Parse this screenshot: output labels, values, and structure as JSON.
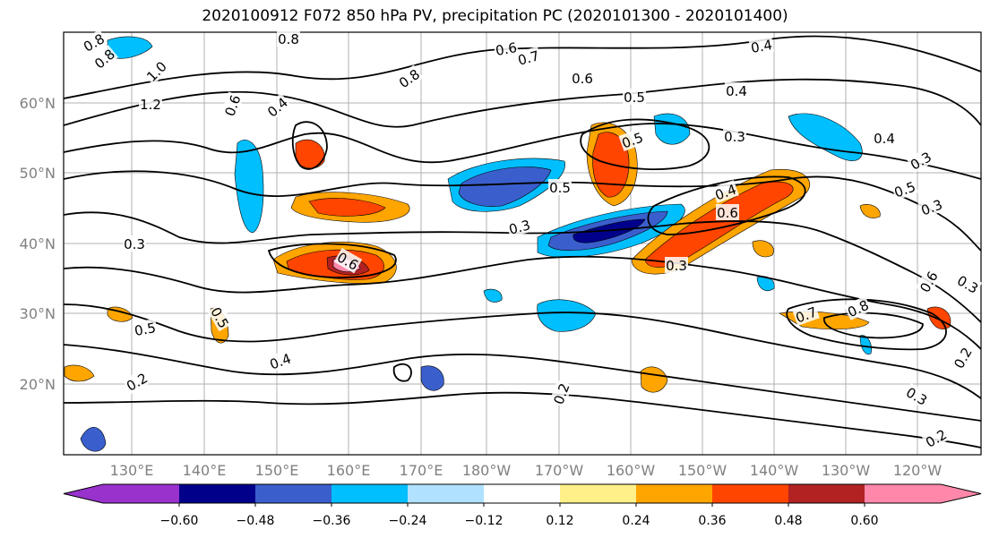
{
  "title": "2020100912 F072 850 hPa PV, precipitation PC (2020101300 - 2020101400)",
  "map": {
    "lat_labels": [
      "60°N",
      "50°N",
      "40°N",
      "30°N",
      "20°N"
    ],
    "lon_labels": [
      "130°E",
      "140°E",
      "150°E",
      "160°E",
      "170°E",
      "180°W",
      "170°W",
      "160°W",
      "150°W",
      "140°W",
      "130°W",
      "120°W"
    ],
    "contour_labels": [
      "0.8",
      "0.8",
      "1.0",
      "1.2",
      "0.6",
      "0.7",
      "0.4",
      "0.8",
      "0.8",
      "0.6",
      "0.5",
      "0.4",
      "0.6",
      "0.4",
      "0.3",
      "0.4",
      "0.5",
      "0.5",
      "0.4",
      "0.3",
      "0.6",
      "0.3",
      "0.3",
      "0.6",
      "0.3",
      "0.5",
      "0.5",
      "0.2",
      "0.4",
      "0.2",
      "0.7",
      "0.8",
      "0.6",
      "0.3",
      "0.2",
      "0.3",
      "0.2",
      "0.5",
      "0.3"
    ]
  },
  "colorbar": {
    "ticks": [
      "−0.60",
      "−0.48",
      "−0.36",
      "−0.24",
      "−0.12",
      "0.12",
      "0.24",
      "0.36",
      "0.48",
      "0.60"
    ],
    "colors": [
      "#9932cc",
      "#00008b",
      "#3a5fcd",
      "#00bfff",
      "#b0e2ff",
      "#ffffff",
      "#fff08a",
      "#ffa500",
      "#ff4500",
      "#b22222",
      "#ff88aa"
    ]
  }
}
